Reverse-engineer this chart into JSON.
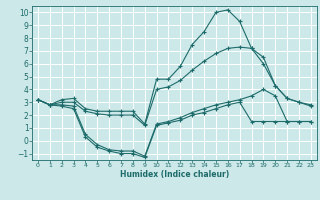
{
  "title": "",
  "xlabel": "Humidex (Indice chaleur)",
  "background_color": "#cce8e8",
  "grid_color": "#ffffff",
  "line_color": "#1e6b6b",
  "xlim": [
    -0.5,
    23.5
  ],
  "ylim": [
    -1.5,
    10.5
  ],
  "xticks": [
    0,
    1,
    2,
    3,
    4,
    5,
    6,
    7,
    8,
    9,
    10,
    11,
    12,
    13,
    14,
    15,
    16,
    17,
    18,
    19,
    20,
    21,
    22,
    23
  ],
  "yticks": [
    -1,
    0,
    1,
    2,
    3,
    4,
    5,
    6,
    7,
    8,
    9,
    10
  ],
  "lines": [
    {
      "x": [
        0,
        1,
        2,
        3,
        4,
        5,
        6,
        7,
        8,
        9,
        10,
        11,
        12,
        13,
        14,
        15,
        16,
        17,
        18,
        19,
        20,
        21,
        22,
        23
      ],
      "y": [
        3.2,
        2.8,
        3.2,
        3.3,
        2.5,
        2.3,
        2.3,
        2.3,
        2.3,
        1.3,
        4.8,
        4.8,
        5.8,
        7.5,
        8.5,
        10.0,
        10.2,
        9.3,
        7.2,
        6.0,
        4.3,
        3.3,
        3.0,
        2.8
      ]
    },
    {
      "x": [
        0,
        1,
        2,
        3,
        4,
        5,
        6,
        7,
        8,
        9,
        10,
        11,
        12,
        13,
        14,
        15,
        16,
        17,
        18,
        19,
        20,
        21,
        22,
        23
      ],
      "y": [
        3.2,
        2.8,
        3.0,
        3.0,
        2.3,
        2.1,
        2.0,
        2.0,
        2.0,
        1.2,
        4.0,
        4.2,
        4.7,
        5.5,
        6.2,
        6.8,
        7.2,
        7.3,
        7.2,
        6.5,
        4.3,
        3.3,
        3.0,
        2.7
      ]
    },
    {
      "x": [
        0,
        1,
        2,
        3,
        4,
        5,
        6,
        7,
        8,
        9,
        10,
        11,
        12,
        13,
        14,
        15,
        16,
        17,
        18,
        19,
        20,
        21,
        22,
        23
      ],
      "y": [
        3.2,
        2.8,
        2.8,
        2.7,
        0.5,
        -0.3,
        -0.7,
        -0.8,
        -0.8,
        -1.2,
        1.3,
        1.5,
        1.8,
        2.2,
        2.5,
        2.8,
        3.0,
        3.2,
        3.5,
        4.0,
        3.5,
        1.5,
        1.5,
        1.5
      ]
    },
    {
      "x": [
        0,
        1,
        2,
        3,
        4,
        5,
        6,
        7,
        8,
        9,
        10,
        11,
        12,
        13,
        14,
        15,
        16,
        17,
        18,
        19,
        20,
        21,
        22,
        23
      ],
      "y": [
        3.2,
        2.8,
        2.7,
        2.5,
        0.3,
        -0.5,
        -0.8,
        -1.0,
        -1.0,
        -1.3,
        1.2,
        1.4,
        1.6,
        2.0,
        2.2,
        2.5,
        2.8,
        3.0,
        1.5,
        1.5,
        1.5,
        1.5,
        1.5,
        1.5
      ]
    }
  ]
}
